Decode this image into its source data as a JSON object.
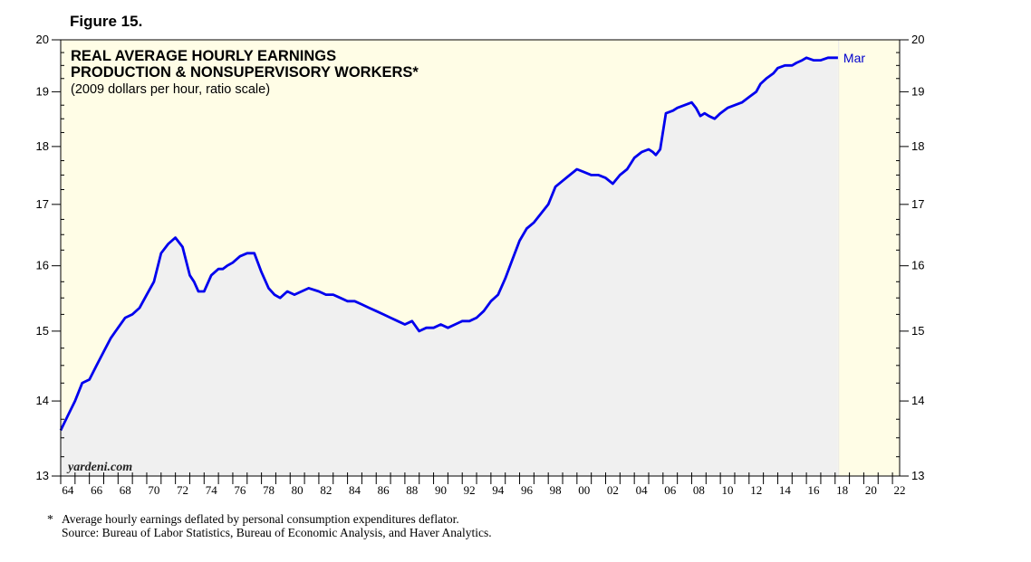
{
  "figure_label": "Figure 15.",
  "watermark": "yardeni.com",
  "colors": {
    "line": "#0000ee",
    "plot_bg": "#fffde6",
    "area_fill": "#f0f0f0",
    "label": "#0000cc"
  },
  "chart_data": {
    "type": "area",
    "title": "REAL AVERAGE HOURLY EARNINGS",
    "title_line2": "PRODUCTION & NONSUPERVISORY WORKERS*",
    "subtitle": "(2009 dollars per hour, ratio scale)",
    "y_scale": "log",
    "ylim": [
      13,
      20
    ],
    "yticks": [
      13,
      14,
      15,
      16,
      17,
      18,
      19,
      20
    ],
    "ytick_labels": [
      "13",
      "14",
      "15",
      "16",
      "17",
      "18",
      "19",
      "20"
    ],
    "xlim": [
      1964,
      2022.5
    ],
    "xticks": [
      1964,
      1966,
      1968,
      1970,
      1972,
      1974,
      1976,
      1978,
      1980,
      1982,
      1984,
      1986,
      1988,
      1990,
      1992,
      1994,
      1996,
      1998,
      2000,
      2002,
      2004,
      2006,
      2008,
      2010,
      2012,
      2014,
      2016,
      2018,
      2020,
      2022
    ],
    "xtick_labels": [
      "64",
      "66",
      "68",
      "70",
      "72",
      "74",
      "76",
      "78",
      "80",
      "82",
      "84",
      "86",
      "88",
      "90",
      "92",
      "94",
      "96",
      "98",
      "00",
      "02",
      "04",
      "06",
      "08",
      "10",
      "12",
      "14",
      "16",
      "18",
      "20",
      "22"
    ],
    "grid": false,
    "shaded_after": 2018.25,
    "end_label": "Mar",
    "series": [
      {
        "x": [
          1964.0,
          1964.5,
          1965.0,
          1965.5,
          1966.0,
          1966.5,
          1967.0,
          1967.5,
          1968.0,
          1968.5,
          1969.0,
          1969.5,
          1970.0,
          1970.5,
          1971.0,
          1971.5,
          1972.0,
          1972.5,
          1973.0,
          1973.3,
          1973.6,
          1974.0,
          1974.5,
          1975.0,
          1975.3,
          1975.6,
          1976.0,
          1976.5,
          1977.0,
          1977.5,
          1978.0,
          1978.5,
          1978.9,
          1979.3,
          1979.8,
          1980.3,
          1980.8,
          1981.3,
          1982.0,
          1982.5,
          1983.0,
          1983.5,
          1984.0,
          1984.5,
          1985.0,
          1985.5,
          1986.0,
          1986.5,
          1987.0,
          1987.5,
          1988.0,
          1988.5,
          1989.0,
          1989.5,
          1990.0,
          1990.5,
          1991.0,
          1991.5,
          1992.0,
          1992.5,
          1993.0,
          1993.5,
          1994.0,
          1994.5,
          1995.0,
          1995.5,
          1996.0,
          1996.5,
          1997.0,
          1997.5,
          1998.0,
          1998.5,
          1999.0,
          1999.5,
          2000.0,
          2000.5,
          2001.0,
          2001.5,
          2002.0,
          2002.5,
          2003.0,
          2003.5,
          2004.0,
          2004.5,
          2005.0,
          2005.3,
          2005.5,
          2005.8,
          2006.2,
          2006.7,
          2007.0,
          2007.5,
          2008.0,
          2008.3,
          2008.6,
          2008.9,
          2009.2,
          2009.6,
          2010.0,
          2010.5,
          2011.0,
          2011.5,
          2012.0,
          2012.5,
          2012.8,
          2013.2,
          2013.7,
          2014.0,
          2014.5,
          2015.0,
          2015.3,
          2015.7,
          2016.0,
          2016.5,
          2017.0,
          2017.5,
          2017.8,
          2018.2
        ],
        "y": [
          13.6,
          13.8,
          14.0,
          14.25,
          14.3,
          14.5,
          14.7,
          14.9,
          15.05,
          15.2,
          15.25,
          15.35,
          15.55,
          15.75,
          16.2,
          16.35,
          16.45,
          16.3,
          15.85,
          15.75,
          15.6,
          15.6,
          15.85,
          15.95,
          15.95,
          16.0,
          16.05,
          16.15,
          16.2,
          16.2,
          15.9,
          15.65,
          15.55,
          15.5,
          15.6,
          15.55,
          15.6,
          15.65,
          15.6,
          15.55,
          15.55,
          15.5,
          15.45,
          15.45,
          15.4,
          15.35,
          15.3,
          15.25,
          15.2,
          15.15,
          15.1,
          15.15,
          15.0,
          15.05,
          15.05,
          15.1,
          15.05,
          15.1,
          15.15,
          15.15,
          15.2,
          15.3,
          15.45,
          15.55,
          15.8,
          16.1,
          16.4,
          16.6,
          16.7,
          16.85,
          17.0,
          17.3,
          17.4,
          17.5,
          17.6,
          17.55,
          17.5,
          17.5,
          17.45,
          17.35,
          17.5,
          17.6,
          17.8,
          17.9,
          17.95,
          17.9,
          17.85,
          17.95,
          18.6,
          18.65,
          18.7,
          18.75,
          18.8,
          18.7,
          18.55,
          18.6,
          18.55,
          18.5,
          18.6,
          18.7,
          18.75,
          18.8,
          18.9,
          19.0,
          19.15,
          19.25,
          19.35,
          19.45,
          19.5,
          19.5,
          19.55,
          19.6,
          19.65,
          19.6,
          19.6,
          19.65,
          19.65,
          19.65
        ]
      }
    ]
  },
  "footnotes": {
    "marker": "*",
    "note": "Average hourly earnings deflated by personal consumption expenditures deflator.",
    "source": "Source: Bureau of Labor Statistics, Bureau of Economic Analysis, and Haver Analytics."
  }
}
